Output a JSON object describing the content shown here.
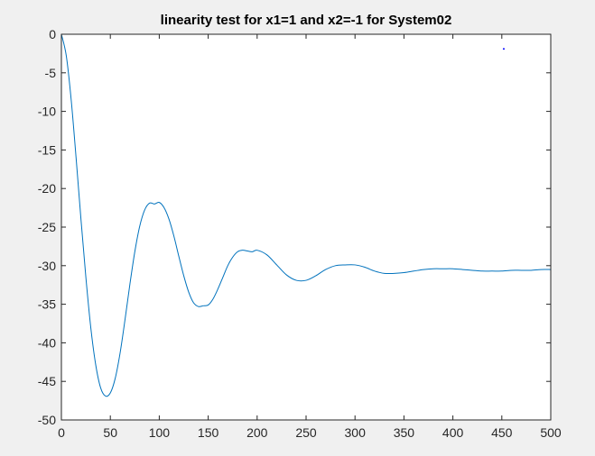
{
  "chart_data": {
    "type": "line",
    "title": "linearity test for x1=1 and x2=-1 for System02",
    "xlabel": "",
    "ylabel": "",
    "xlim": [
      0,
      500
    ],
    "ylim": [
      -50,
      0
    ],
    "xticks": [
      0,
      50,
      100,
      150,
      200,
      250,
      300,
      350,
      400,
      450,
      500
    ],
    "yticks": [
      0,
      -5,
      -10,
      -15,
      -20,
      -25,
      -30,
      -35,
      -40,
      -45,
      -50
    ],
    "grid": false,
    "legend": "none",
    "colors": {
      "series": "#0072bd",
      "marker": "#0000ff",
      "axes_bg": "#ffffff",
      "figure_bg": "#f0f0f0"
    },
    "series": [
      {
        "x": [
          0,
          5,
          10,
          15,
          20,
          25,
          30,
          35,
          40,
          45,
          50,
          55,
          60,
          65,
          70,
          75,
          80,
          85,
          90,
          95,
          100,
          105,
          110,
          115,
          120,
          125,
          130,
          135,
          140,
          145,
          150,
          155,
          160,
          165,
          170,
          175,
          180,
          185,
          190,
          195,
          200,
          210,
          220,
          230,
          240,
          250,
          260,
          270,
          280,
          290,
          300,
          310,
          320,
          330,
          340,
          350,
          360,
          370,
          380,
          390,
          400,
          410,
          420,
          430,
          440,
          450,
          460,
          470,
          480,
          490,
          500
        ],
        "y": [
          0,
          -2.8,
          -8.5,
          -16,
          -24,
          -31.5,
          -38,
          -42.8,
          -45.8,
          -46.9,
          -46.5,
          -44.6,
          -41.3,
          -37.0,
          -32.4,
          -28.2,
          -24.9,
          -22.8,
          -21.9,
          -22.0,
          -21.8,
          -22.5,
          -24.0,
          -26.2,
          -28.8,
          -31.3,
          -33.4,
          -34.8,
          -35.3,
          -35.2,
          -35.1,
          -34.3,
          -33.0,
          -31.5,
          -30.0,
          -28.9,
          -28.2,
          -28.0,
          -28.1,
          -28.2,
          -28.0,
          -28.6,
          -29.9,
          -31.2,
          -31.9,
          -31.9,
          -31.3,
          -30.5,
          -30.0,
          -29.9,
          -29.9,
          -30.2,
          -30.7,
          -31.0,
          -31.0,
          -30.9,
          -30.7,
          -30.5,
          -30.4,
          -30.4,
          -30.4,
          -30.5,
          -30.6,
          -30.7,
          -30.7,
          -30.7,
          -30.6,
          -30.6,
          -30.6,
          -30.5,
          -30.5
        ]
      },
      {
        "type": "scatter",
        "x": [
          452
        ],
        "y": [
          -1.9
        ]
      }
    ]
  }
}
